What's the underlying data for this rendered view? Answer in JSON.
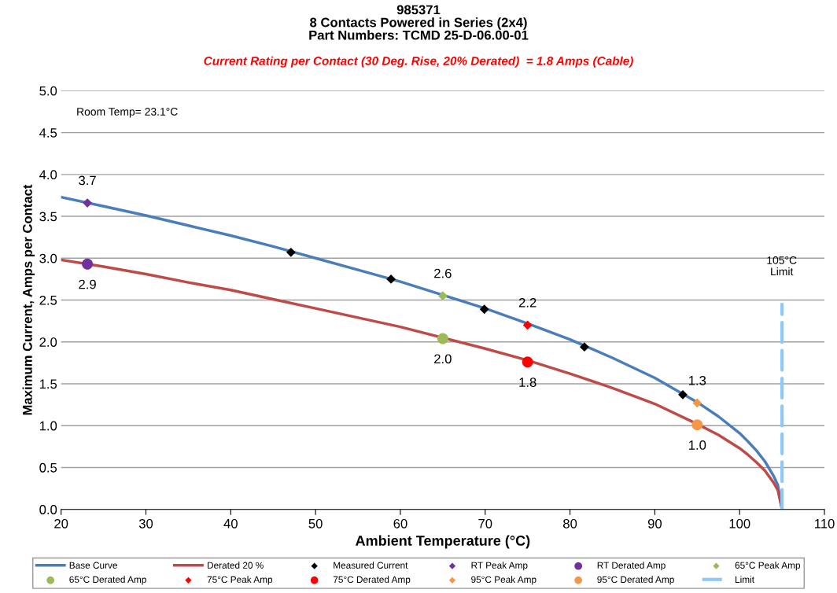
{
  "chart_data": {
    "type": "line",
    "title": "985371\n8 Contacts Powered in Series (2x4)\nPart Numbers: TCMD 25-D-06.00-01",
    "subtitle": "Current Rating per Contact (30 Deg. Rise, 20% Derated)  = 1.8 Amps (Cable)",
    "xlabel": "Ambient Temperature (°C)",
    "ylabel": "Maximum Current, Amps per Contact",
    "xlim": [
      20,
      110
    ],
    "xticks": [
      20,
      30,
      40,
      50,
      60,
      70,
      80,
      90,
      100,
      110
    ],
    "ylim": [
      0,
      5
    ],
    "yticks": [
      {
        "value": 0,
        "label": "0.0"
      },
      {
        "value": 0.5,
        "label": "0.5"
      },
      {
        "value": 1,
        "label": "1.0"
      },
      {
        "value": 1.5,
        "label": "1.5"
      },
      {
        "value": 2,
        "label": "2.0"
      },
      {
        "value": 2.5,
        "label": "2.5"
      },
      {
        "value": 3,
        "label": "3.0"
      },
      {
        "value": 3.5,
        "label": "3.5"
      },
      {
        "value": 4,
        "label": "4.0"
      },
      {
        "value": 4.5,
        "label": "4.5"
      },
      {
        "value": 5,
        "label": "5.0"
      }
    ],
    "grid": "y",
    "legend": "bottom",
    "annotations": [
      "Room Temp= 23.1°C",
      "105°C",
      "Limit"
    ],
    "series": [
      {
        "name": "Base Curve",
        "color": "#4a7ebb",
        "marker": "none",
        "x": [
          20,
          25,
          30,
          35,
          40,
          45,
          50,
          55,
          60,
          65,
          70,
          75,
          80,
          85,
          90,
          95,
          97.5,
          100,
          101,
          102,
          103,
          104,
          104.5,
          105
        ],
        "values": [
          3.73,
          3.62,
          3.51,
          3.39,
          3.27,
          3.14,
          3.0,
          2.86,
          2.72,
          2.56,
          2.4,
          2.22,
          2.03,
          1.81,
          1.57,
          1.28,
          1.11,
          0.91,
          0.81,
          0.7,
          0.57,
          0.4,
          0.29,
          0
        ]
      },
      {
        "name": "Derated 20 %",
        "color": "#be4b48",
        "marker": "none",
        "x": [
          20,
          25,
          30,
          35,
          40,
          45,
          50,
          55,
          60,
          70,
          75,
          80,
          85,
          90,
          95,
          97.5,
          100,
          101,
          102,
          103,
          104,
          104.5,
          105
        ],
        "values": [
          2.98,
          2.9,
          2.81,
          2.71,
          2.62,
          2.51,
          2.4,
          2.29,
          2.18,
          1.92,
          1.78,
          1.62,
          1.45,
          1.26,
          1.02,
          0.89,
          0.73,
          0.65,
          0.56,
          0.46,
          0.32,
          0.23,
          0
        ]
      },
      {
        "name": "Measured Current",
        "type": "scatter",
        "color": "#000000",
        "marker": "diamond",
        "x": [
          47.1,
          58.9,
          69.9,
          81.7,
          93.3
        ],
        "values": [
          3.07,
          2.75,
          2.39,
          1.94,
          1.37
        ]
      },
      {
        "name": "RT Peak Amp",
        "type": "scatter",
        "color": "#7030a0",
        "marker": "diamond",
        "x": [
          23.1
        ],
        "values": [
          3.66
        ],
        "value_labels": [
          "3.7"
        ]
      },
      {
        "name": "RT Derated Amp",
        "type": "scatter",
        "color": "#7030a0",
        "marker": "circle",
        "x": [
          23.1
        ],
        "values": [
          2.93
        ],
        "value_labels": [
          "2.9"
        ]
      },
      {
        "name": "65°C Peak Amp",
        "type": "scatter",
        "color": "#9bbb59",
        "marker": "diamond",
        "x": [
          65
        ],
        "values": [
          2.55
        ],
        "value_labels": [
          "2.6"
        ]
      },
      {
        "name": "65°C Derated Amp",
        "type": "scatter",
        "color": "#9bbb59",
        "marker": "circle",
        "x": [
          65
        ],
        "values": [
          2.04
        ],
        "value_labels": [
          "2.0"
        ]
      },
      {
        "name": "75°C Peak Amp",
        "type": "scatter",
        "color": "#ff0000",
        "marker": "diamond",
        "x": [
          75
        ],
        "values": [
          2.2
        ],
        "value_labels": [
          "2.2"
        ]
      },
      {
        "name": "75°C Derated Amp",
        "type": "scatter",
        "color": "#ff0000",
        "marker": "circle",
        "x": [
          75
        ],
        "values": [
          1.76
        ],
        "value_labels": [
          "1.8"
        ]
      },
      {
        "name": "95°C Peak Amp",
        "type": "scatter",
        "color": "#f79646",
        "marker": "diamond",
        "x": [
          95
        ],
        "values": [
          1.27
        ],
        "value_labels": [
          "1.3"
        ]
      },
      {
        "name": "95°C Derated Amp",
        "type": "scatter",
        "color": "#f79646",
        "marker": "circle",
        "x": [
          95
        ],
        "values": [
          1.01
        ],
        "value_labels": [
          "1.0"
        ]
      },
      {
        "name": "Limit",
        "color": "#8ec8f8",
        "marker": "none",
        "line_style": "dashed",
        "x": [
          105,
          105
        ],
        "values": [
          0,
          2.45
        ]
      }
    ]
  }
}
